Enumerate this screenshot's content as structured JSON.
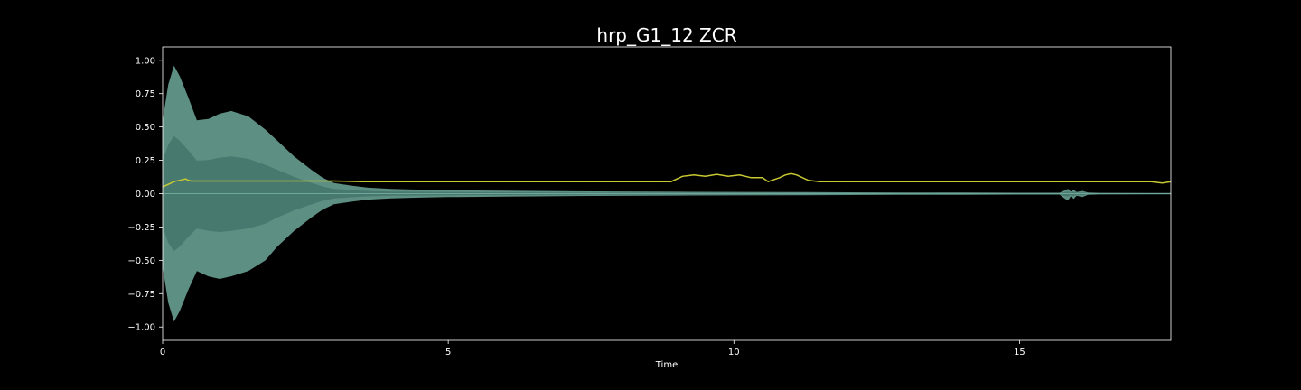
{
  "chart_data": {
    "type": "line",
    "title": "hrp_G1_12 ZCR",
    "xlabel": "Time",
    "ylabel": "",
    "xlim": [
      0,
      17.65
    ],
    "ylim": [
      -1.1,
      1.1
    ],
    "x_ticks": [
      0,
      5,
      10,
      15
    ],
    "x_tick_labels": [
      "0",
      "5",
      "10",
      "15"
    ],
    "y_ticks": [
      1.0,
      0.75,
      0.5,
      0.25,
      0.0,
      -0.25,
      -0.5,
      -0.75,
      -1.0
    ],
    "y_tick_labels": [
      "1.00",
      "0.75",
      "0.50",
      "0.25",
      "0.00",
      "−0.25",
      "−0.50",
      "−0.75",
      "−1.00"
    ],
    "grid": false,
    "colors": {
      "background": "#000000",
      "waveform": "#6fa89a",
      "waveform_inner": "#3f6f66",
      "zcr": "#c8c832",
      "frame": "#ffffff"
    },
    "series": [
      {
        "kind": "waveform-envelope",
        "x": [
          0,
          0.1,
          0.2,
          0.3,
          0.45,
          0.6,
          0.8,
          1.0,
          1.2,
          1.5,
          1.8,
          2.0,
          2.3,
          2.6,
          2.8,
          3.0,
          3.3,
          3.6,
          4.0,
          4.5,
          5.0,
          6.0,
          7.0,
          8.0,
          9.0,
          10.0,
          11.0,
          12.0,
          13.0,
          14.0,
          15.0,
          15.7,
          15.8,
          15.85,
          15.9,
          15.95,
          16.0,
          16.1,
          16.2,
          16.4,
          17.65
        ],
        "upper": [
          0.55,
          0.82,
          0.96,
          0.88,
          0.72,
          0.55,
          0.56,
          0.6,
          0.62,
          0.58,
          0.48,
          0.4,
          0.28,
          0.18,
          0.12,
          0.08,
          0.06,
          0.045,
          0.035,
          0.03,
          0.026,
          0.022,
          0.018,
          0.016,
          0.014,
          0.013,
          0.012,
          0.01,
          0.009,
          0.008,
          0.007,
          0.007,
          0.025,
          0.035,
          0.015,
          0.03,
          0.012,
          0.02,
          0.008,
          0.006,
          0.005
        ],
        "lower": [
          -0.55,
          -0.82,
          -0.96,
          -0.88,
          -0.72,
          -0.58,
          -0.62,
          -0.64,
          -0.62,
          -0.58,
          -0.5,
          -0.4,
          -0.28,
          -0.18,
          -0.12,
          -0.08,
          -0.06,
          -0.045,
          -0.035,
          -0.03,
          -0.026,
          -0.022,
          -0.018,
          -0.016,
          -0.014,
          -0.013,
          -0.012,
          -0.01,
          -0.009,
          -0.008,
          -0.007,
          -0.007,
          -0.04,
          -0.05,
          -0.02,
          -0.04,
          -0.015,
          -0.025,
          -0.008,
          -0.006,
          -0.005
        ]
      },
      {
        "kind": "line",
        "x": [
          0,
          0.1,
          0.2,
          0.3,
          0.4,
          0.45,
          0.5,
          0.6,
          1.0,
          2.0,
          3.0,
          3.5,
          4.0,
          5.0,
          6.0,
          7.0,
          8.0,
          8.9,
          9.1,
          9.3,
          9.5,
          9.7,
          9.9,
          10.1,
          10.3,
          10.5,
          10.6,
          10.8,
          10.9,
          11.0,
          11.1,
          11.3,
          11.5,
          12.0,
          13.0,
          14.0,
          15.0,
          16.0,
          16.5,
          17.0,
          17.3,
          17.5,
          17.65
        ],
        "y": [
          0.05,
          0.07,
          0.09,
          0.1,
          0.11,
          0.1,
          0.095,
          0.095,
          0.095,
          0.095,
          0.095,
          0.09,
          0.09,
          0.09,
          0.09,
          0.09,
          0.09,
          0.09,
          0.13,
          0.14,
          0.13,
          0.145,
          0.13,
          0.14,
          0.12,
          0.12,
          0.09,
          0.12,
          0.14,
          0.15,
          0.14,
          0.1,
          0.09,
          0.09,
          0.09,
          0.09,
          0.09,
          0.09,
          0.09,
          0.09,
          0.09,
          0.08,
          0.09
        ]
      }
    ]
  }
}
